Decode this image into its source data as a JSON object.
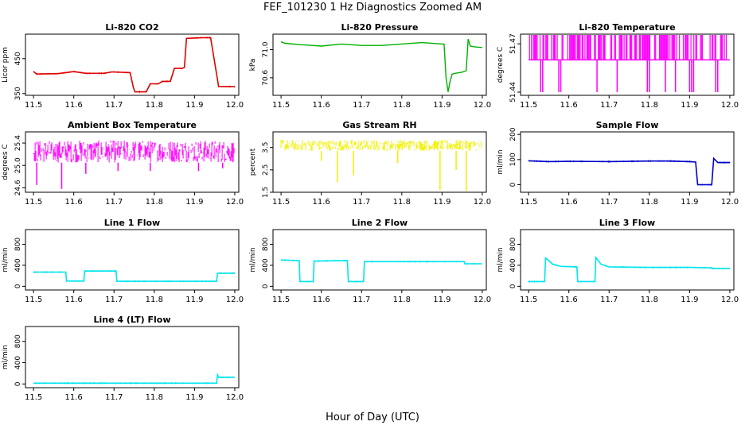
{
  "page": {
    "title": "FEF_101230  1 Hz Diagnostics Zoomed AM",
    "xlabel": "Hour of Day (UTC)"
  },
  "colors": {
    "co2": "#e00000",
    "pressure": "#00b000",
    "magenta": "#ff00ff",
    "yellow": "#f0f000",
    "blue": "#0000cc",
    "cyan": "#00e5ee"
  },
  "chart_data": [
    {
      "type": "line",
      "title": "Li-820 CO2",
      "ylabel": "Licor ppm",
      "color": "#e00000",
      "xlim": [
        11.48,
        12.01
      ],
      "ylim": [
        345,
        520
      ],
      "xticks": [
        "11.5",
        "11.6",
        "11.7",
        "11.8",
        "11.9",
        "12.0"
      ],
      "yticks": [
        {
          "v": 350,
          "t": "350"
        },
        {
          "v": 450,
          "t": "450"
        }
      ],
      "style": "step",
      "x": [
        11.5,
        11.508,
        11.56,
        11.58,
        11.6,
        11.63,
        11.675,
        11.695,
        11.74,
        11.748,
        11.752,
        11.78,
        11.79,
        11.81,
        11.82,
        11.84,
        11.85,
        11.87,
        11.875,
        11.88,
        11.92,
        11.94,
        11.96,
        11.97,
        12.0
      ],
      "y": [
        413,
        406,
        407,
        410,
        413,
        408,
        408,
        412,
        410,
        368,
        355,
        355,
        378,
        378,
        385,
        385,
        422,
        422,
        425,
        508,
        510,
        510,
        370,
        370,
        370
      ]
    },
    {
      "type": "line",
      "title": "Li-820 Pressure",
      "ylabel": "kPa",
      "color": "#00b000",
      "xlim": [
        11.48,
        12.01
      ],
      "ylim": [
        70.35,
        71.22
      ],
      "xticks": [
        "11.5",
        "11.6",
        "11.7",
        "11.8",
        "11.9",
        "12.0"
      ],
      "yticks": [
        {
          "v": 70.6,
          "t": "70.6"
        },
        {
          "v": 71.0,
          "t": "71.0"
        }
      ],
      "style": "line",
      "x": [
        11.5,
        11.51,
        11.55,
        11.6,
        11.65,
        11.7,
        11.75,
        11.8,
        11.85,
        11.9,
        11.905,
        11.91,
        11.915,
        11.92,
        11.925,
        11.93,
        11.95,
        11.96,
        11.965,
        11.97,
        11.98,
        12.0
      ],
      "y": [
        71.11,
        71.09,
        71.07,
        71.05,
        71.08,
        71.06,
        71.06,
        71.08,
        71.1,
        71.08,
        71.08,
        70.6,
        70.4,
        70.55,
        70.65,
        70.66,
        70.68,
        70.7,
        71.15,
        71.05,
        71.04,
        71.03
      ]
    },
    {
      "type": "line",
      "title": "Li-820 Temperature",
      "ylabel": "degrees C",
      "color": "#ff00ff",
      "xlim": [
        11.48,
        12.01
      ],
      "ylim": [
        51.438,
        51.476
      ],
      "xticks": [
        "11.5",
        "11.6",
        "11.7",
        "11.8",
        "11.9",
        "12.0"
      ],
      "yticks": [
        {
          "v": 51.44,
          "t": "51.44"
        },
        {
          "v": 51.47,
          "t": "51.47"
        }
      ],
      "style": "binary",
      "levels": [
        51.46,
        51.476
      ],
      "dip_level": 51.44,
      "dips_x": [
        11.53,
        11.535,
        11.575,
        11.58,
        11.67,
        11.72,
        11.795,
        11.8,
        11.84,
        11.865,
        11.9,
        11.905,
        11.91,
        11.965,
        11.97
      ]
    },
    {
      "type": "line",
      "title": "Ambient Box Temperature",
      "ylabel": "degrees C",
      "color": "#ff00ff",
      "xlim": [
        11.48,
        12.01
      ],
      "ylim": [
        24.52,
        25.6
      ],
      "xticks": [
        "11.5",
        "11.6",
        "11.7",
        "11.8",
        "11.9",
        "12.0"
      ],
      "yticks": [
        {
          "v": 24.6,
          "t": "24.6"
        },
        {
          "v": 25.0,
          "t": "25.0"
        },
        {
          "v": 25.4,
          "t": "25.4"
        }
      ],
      "style": "band",
      "band": [
        25.05,
        25.45
      ],
      "dips": [
        {
          "x": 11.508,
          "y": 24.65
        },
        {
          "x": 11.57,
          "y": 24.58
        },
        {
          "x": 11.63,
          "y": 24.85
        },
        {
          "x": 11.71,
          "y": 24.9
        },
        {
          "x": 11.79,
          "y": 24.9
        },
        {
          "x": 11.91,
          "y": 24.9
        },
        {
          "x": 11.97,
          "y": 24.95
        }
      ]
    },
    {
      "type": "line",
      "title": "Gas Stream RH",
      "ylabel": "percent",
      "color": "#f0f000",
      "xlim": [
        11.48,
        12.01
      ],
      "ylim": [
        1.5,
        4.2
      ],
      "xticks": [
        "11.5",
        "11.6",
        "11.7",
        "11.8",
        "11.9",
        "12.0"
      ],
      "yticks": [
        {
          "v": 1.5,
          "t": "1.5"
        },
        {
          "v": 2.5,
          "t": "2.5"
        },
        {
          "v": 3.5,
          "t": "3.5"
        }
      ],
      "style": "band",
      "band": [
        3.35,
        3.85
      ],
      "dips": [
        {
          "x": 11.64,
          "y": 1.95
        },
        {
          "x": 11.68,
          "y": 2.25
        },
        {
          "x": 11.895,
          "y": 1.6
        },
        {
          "x": 11.935,
          "y": 2.5
        },
        {
          "x": 11.96,
          "y": 1.55
        },
        {
          "x": 11.79,
          "y": 2.8
        },
        {
          "x": 11.6,
          "y": 2.9
        }
      ]
    },
    {
      "type": "line",
      "title": "Sample Flow",
      "ylabel": "ml/min",
      "color": "#0000cc",
      "xlim": [
        11.48,
        12.01
      ],
      "ylim": [
        -30,
        210
      ],
      "xticks": [
        "11.5",
        "11.6",
        "11.7",
        "11.8",
        "11.9",
        "12.0"
      ],
      "yticks": [
        {
          "v": 0,
          "t": "0"
        },
        {
          "v": 100,
          "t": "100"
        },
        {
          "v": 200,
          "t": "200"
        }
      ],
      "style": "step",
      "x": [
        11.5,
        11.55,
        11.6,
        11.7,
        11.8,
        11.85,
        11.9,
        11.915,
        11.92,
        11.955,
        11.96,
        11.97,
        12.0
      ],
      "y": [
        95,
        92,
        93,
        92,
        94,
        94,
        92,
        90,
        0,
        0,
        105,
        88,
        88
      ]
    },
    {
      "type": "line",
      "title": "Line 1 Flow",
      "ylabel": "ml/min",
      "color": "#00e5ee",
      "xlim": [
        11.48,
        12.01
      ],
      "ylim": [
        -70,
        1080
      ],
      "xticks": [
        "11.5",
        "11.6",
        "11.7",
        "11.8",
        "11.9",
        "12.0"
      ],
      "yticks": [
        {
          "v": 0,
          "t": "0"
        },
        {
          "v": 400,
          "t": "400"
        },
        {
          "v": 800,
          "t": "800"
        }
      ],
      "style": "step",
      "x": [
        11.5,
        11.58,
        11.582,
        11.625,
        11.627,
        11.705,
        11.707,
        11.955,
        11.957,
        12.0
      ],
      "y": [
        270,
        270,
        100,
        100,
        290,
        290,
        95,
        95,
        250,
        250
      ]
    },
    {
      "type": "line",
      "title": "Line 2 Flow",
      "ylabel": "ml/min",
      "color": "#00e5ee",
      "xlim": [
        11.48,
        12.01
      ],
      "ylim": [
        -70,
        1080
      ],
      "xticks": [
        "11.5",
        "11.6",
        "11.7",
        "11.8",
        "11.9",
        "12.0"
      ],
      "yticks": [
        {
          "v": 0,
          "t": "0"
        },
        {
          "v": 400,
          "t": "400"
        },
        {
          "v": 800,
          "t": "800"
        }
      ],
      "style": "step",
      "x": [
        11.5,
        11.545,
        11.547,
        11.58,
        11.582,
        11.665,
        11.667,
        11.705,
        11.707,
        11.955,
        11.957,
        12.0
      ],
      "y": [
        500,
        490,
        90,
        90,
        480,
        490,
        90,
        90,
        470,
        470,
        430,
        430
      ]
    },
    {
      "type": "line",
      "title": "Line 3 Flow",
      "ylabel": "ml/min",
      "color": "#00e5ee",
      "xlim": [
        11.48,
        12.01
      ],
      "ylim": [
        -70,
        1080
      ],
      "xticks": [
        "11.5",
        "11.6",
        "11.7",
        "11.8",
        "11.9",
        "12.0"
      ],
      "yticks": [
        {
          "v": 0,
          "t": "0"
        },
        {
          "v": 400,
          "t": "400"
        },
        {
          "v": 800,
          "t": "800"
        }
      ],
      "style": "step",
      "x": [
        11.5,
        11.54,
        11.542,
        11.56,
        11.58,
        11.62,
        11.622,
        11.665,
        11.667,
        11.68,
        11.7,
        11.8,
        11.9,
        11.955,
        11.957,
        12.0
      ],
      "y": [
        90,
        90,
        540,
        420,
        380,
        370,
        90,
        90,
        550,
        420,
        370,
        360,
        360,
        350,
        340,
        340
      ]
    },
    {
      "type": "line",
      "title": "Line 4 (LT) Flow",
      "ylabel": "ml/min",
      "color": "#00e5ee",
      "xlim": [
        11.48,
        12.01
      ],
      "ylim": [
        -70,
        1080
      ],
      "xticks": [
        "11.5",
        "11.6",
        "11.7",
        "11.8",
        "11.9",
        "12.0"
      ],
      "yticks": [
        {
          "v": 0,
          "t": "0"
        },
        {
          "v": 400,
          "t": "400"
        },
        {
          "v": 800,
          "t": "800"
        }
      ],
      "style": "step",
      "x": [
        11.5,
        11.955,
        11.957,
        11.96,
        12.0
      ],
      "y": [
        15,
        15,
        170,
        125,
        125
      ]
    }
  ]
}
